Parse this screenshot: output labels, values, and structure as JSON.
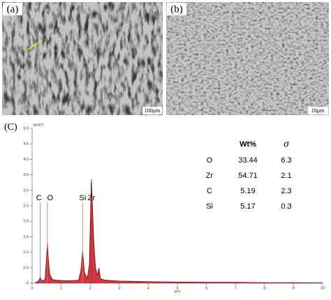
{
  "panels": [
    {
      "label": "(a)",
      "scale_bar": "100μm"
    },
    {
      "label": "(b)",
      "scale_bar": "10μm"
    }
  ],
  "chart_data": {
    "type": "area",
    "panel_label": "(C)",
    "xlabel": "keV",
    "ylabel": "cps/eV",
    "color": "#c8161d",
    "x": [
      0.1,
      0.2,
      0.25,
      0.28,
      0.31,
      0.4,
      0.45,
      0.5,
      0.525,
      0.55,
      0.6,
      0.7,
      0.8,
      1.0,
      1.2,
      1.4,
      1.6,
      1.68,
      1.74,
      1.8,
      1.9,
      1.97,
      2.0,
      2.04,
      2.08,
      2.12,
      2.18,
      2.25,
      2.3,
      2.35,
      2.5,
      3.0,
      3.5,
      4.0,
      5.0,
      6.0,
      7.0,
      8.0,
      9.0,
      10
    ],
    "values": [
      0.02,
      0.05,
      0.12,
      0.2,
      0.1,
      0.08,
      0.15,
      0.9,
      1.3,
      0.9,
      0.3,
      0.12,
      0.1,
      0.09,
      0.08,
      0.08,
      0.1,
      0.4,
      1.05,
      0.35,
      0.15,
      0.6,
      1.8,
      3.35,
      2.4,
      1.4,
      0.5,
      0.25,
      0.5,
      0.15,
      0.1,
      0.07,
      0.06,
      0.05,
      0.04,
      0.03,
      0.03,
      0.02,
      0.02,
      0.01
    ],
    "xlim": [
      0,
      10
    ],
    "ylim": [
      0,
      5
    ],
    "xticks": [
      0,
      1,
      2,
      3,
      4,
      5,
      6,
      7,
      8,
      9,
      10
    ],
    "yticks": [
      0,
      0.5,
      {
        "value": 1,
        "label": "1.0"
      },
      1.5,
      {
        "value": 2,
        "label": "2.0"
      },
      2.5,
      {
        "value": 3,
        "label": "3.0"
      },
      3.5,
      {
        "value": 4,
        "label": "4.0"
      },
      4.5,
      {
        "value": 5,
        "label": "5.0"
      }
    ],
    "peak_labels": [
      {
        "label": "C",
        "energy": 0.28,
        "color": "#5b7fd6"
      },
      {
        "label": "O",
        "energy": 0.525,
        "color": "#e06a6a"
      },
      {
        "label": "Si",
        "energy": 1.74,
        "color": "#e58a2a"
      },
      {
        "label": "Zr",
        "energy": 2.04,
        "color": "#d02020"
      }
    ],
    "table": {
      "header": [
        "Wt%",
        "σ"
      ],
      "rows": [
        [
          "O",
          "33.44",
          "6.3"
        ],
        [
          "Zr",
          "54.71",
          "2.1"
        ],
        [
          "C",
          "5.19",
          "2.3"
        ],
        [
          "Si",
          "5.17",
          "0.3"
        ]
      ]
    }
  }
}
